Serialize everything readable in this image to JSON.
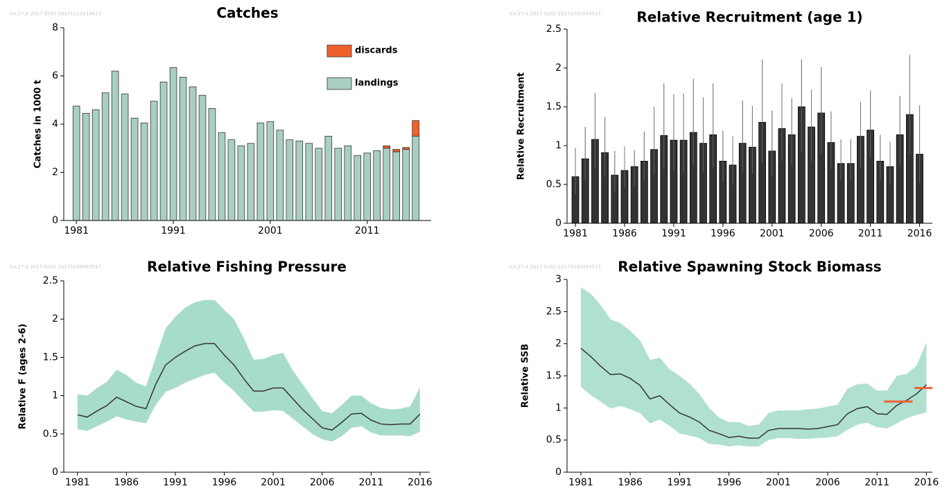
{
  "chart_data": [
    {
      "type": "bar",
      "stamp": "tur.27.4 2017 9260 20171113144813",
      "title": "Catches",
      "y_label": "Catches in 1000 t",
      "x": [
        1981,
        1982,
        1983,
        1984,
        1985,
        1986,
        1987,
        1988,
        1989,
        1990,
        1991,
        1992,
        1993,
        1994,
        1995,
        1996,
        1997,
        1998,
        1999,
        2000,
        2001,
        2002,
        2003,
        2004,
        2005,
        2006,
        2007,
        2008,
        2009,
        2010,
        2011,
        2012,
        2013,
        2014,
        2015,
        2016
      ],
      "series": [
        {
          "name": "landings",
          "color": "#a9cfc1",
          "values": [
            4.75,
            4.45,
            4.6,
            5.3,
            6.2,
            5.25,
            4.25,
            4.05,
            4.95,
            5.75,
            6.35,
            5.95,
            5.55,
            5.2,
            4.65,
            3.65,
            3.35,
            3.1,
            3.2,
            4.05,
            4.1,
            3.75,
            3.35,
            3.3,
            3.2,
            3.0,
            3.5,
            3.0,
            3.1,
            2.7,
            2.8,
            2.9,
            3.0,
            2.85,
            2.95,
            3.5
          ]
        },
        {
          "name": "discards",
          "color": "#f0602b",
          "values": [
            0,
            0,
            0,
            0,
            0,
            0,
            0,
            0,
            0,
            0,
            0,
            0,
            0,
            0,
            0,
            0,
            0,
            0,
            0,
            0,
            0,
            0,
            0,
            0,
            0,
            0,
            0,
            0,
            0,
            0,
            0,
            0,
            0.1,
            0.1,
            0.08,
            0.65
          ]
        }
      ],
      "legend": "top-right",
      "xlim": [
        1979.7,
        2017.6
      ],
      "xticks": [
        1981,
        1991,
        2001,
        2011
      ],
      "ylim": [
        0,
        8
      ],
      "yticks": [
        0,
        2,
        4,
        6,
        8
      ]
    },
    {
      "type": "bar",
      "stamp": "tur.27.4 2017 9242 20171030083517",
      "title": "Relative Recruitment (age 1)",
      "y_label": "Relative Recruitment",
      "x": [
        1981,
        1982,
        1983,
        1984,
        1985,
        1986,
        1987,
        1988,
        1989,
        1990,
        1991,
        1992,
        1993,
        1994,
        1995,
        1996,
        1997,
        1998,
        1999,
        2000,
        2001,
        2002,
        2003,
        2004,
        2005,
        2006,
        2007,
        2008,
        2009,
        2010,
        2011,
        2012,
        2013,
        2014,
        2015,
        2016
      ],
      "values": [
        0.6,
        0.83,
        1.08,
        0.91,
        0.62,
        0.68,
        0.73,
        0.8,
        0.95,
        1.13,
        1.07,
        1.07,
        1.17,
        1.03,
        1.14,
        0.8,
        0.75,
        1.03,
        0.98,
        1.3,
        0.93,
        1.22,
        1.14,
        1.5,
        1.24,
        1.42,
        1.04,
        0.77,
        0.77,
        1.12,
        1.2,
        0.8,
        0.73,
        1.14,
        1.4,
        0.89
      ],
      "upper": [
        0.97,
        1.24,
        1.68,
        1.37,
        0.93,
        0.99,
        0.94,
        1.18,
        1.5,
        1.8,
        1.66,
        1.67,
        1.86,
        1.62,
        1.8,
        1.19,
        1.12,
        1.58,
        1.51,
        2.11,
        1.45,
        1.8,
        1.61,
        2.11,
        1.72,
        2.01,
        1.44,
        1.08,
        1.08,
        1.56,
        1.71,
        1.14,
        1.05,
        1.64,
        2.17,
        1.52
      ],
      "lower": [
        0.37,
        0.55,
        0.7,
        0.6,
        0.41,
        0.46,
        0.48,
        0.55,
        0.63,
        0.7,
        0.68,
        0.66,
        0.74,
        0.66,
        0.72,
        0.53,
        0.5,
        0.67,
        0.64,
        0.78,
        0.6,
        0.8,
        0.75,
        0.93,
        0.8,
        0.9,
        0.7,
        0.55,
        0.55,
        0.72,
        0.85,
        0.55,
        0.5,
        0.76,
        0.9,
        0.52
      ],
      "color": "#333333",
      "error_color": "#777777",
      "xlim": [
        1980.15,
        2017.3
      ],
      "xticks": [
        1981,
        1986,
        1991,
        1996,
        2001,
        2006,
        2011,
        2016
      ],
      "ylim": [
        0,
        2.5
      ],
      "yticks": [
        0,
        0.5,
        1,
        1.5,
        2,
        2.5
      ]
    },
    {
      "type": "line",
      "stamp": "tur.27.4 2017 9242 20171030083517",
      "title": "Relative Fishing Pressure",
      "y_label": "Relative F (ages 2-6)",
      "x": [
        1981,
        1982,
        1983,
        1984,
        1985,
        1986,
        1987,
        1988,
        1989,
        1990,
        1991,
        1992,
        1993,
        1994,
        1995,
        1996,
        1997,
        1998,
        1999,
        2000,
        2001,
        2002,
        2003,
        2004,
        2005,
        2006,
        2007,
        2008,
        2009,
        2010,
        2011,
        2012,
        2013,
        2014,
        2015,
        2016
      ],
      "values": [
        0.75,
        0.72,
        0.8,
        0.87,
        0.98,
        0.92,
        0.86,
        0.83,
        1.15,
        1.4,
        1.5,
        1.58,
        1.65,
        1.68,
        1.68,
        1.53,
        1.4,
        1.22,
        1.06,
        1.06,
        1.1,
        1.1,
        0.96,
        0.82,
        0.7,
        0.58,
        0.55,
        0.65,
        0.76,
        0.77,
        0.68,
        0.63,
        0.62,
        0.63,
        0.63,
        0.76
      ],
      "upper": [
        1.02,
        1.0,
        1.1,
        1.18,
        1.34,
        1.27,
        1.17,
        1.12,
        1.5,
        1.88,
        2.03,
        2.15,
        2.22,
        2.25,
        2.25,
        2.12,
        2.0,
        1.75,
        1.47,
        1.48,
        1.53,
        1.56,
        1.33,
        1.15,
        0.97,
        0.8,
        0.77,
        0.88,
        1.0,
        1.0,
        0.9,
        0.84,
        0.82,
        0.83,
        0.86,
        1.11
      ],
      "lower": [
        0.56,
        0.54,
        0.6,
        0.66,
        0.73,
        0.69,
        0.66,
        0.64,
        0.88,
        1.05,
        1.1,
        1.17,
        1.22,
        1.27,
        1.3,
        1.17,
        1.06,
        0.92,
        0.79,
        0.79,
        0.81,
        0.8,
        0.7,
        0.6,
        0.5,
        0.43,
        0.4,
        0.47,
        0.58,
        0.6,
        0.52,
        0.48,
        0.48,
        0.48,
        0.47,
        0.53
      ],
      "color": "#333333",
      "band_color": "#a8dcca",
      "xlim": [
        1979.6,
        2017.0
      ],
      "xticks": [
        1981,
        1986,
        1991,
        1996,
        2001,
        2006,
        2011,
        2016
      ],
      "ylim": [
        0,
        2.5
      ],
      "yticks": [
        0,
        0.5,
        1,
        1.5,
        2,
        2.5
      ]
    },
    {
      "type": "line",
      "stamp": "tur.27.4 2017 9242 20171030083517",
      "title": "Relative Spawning Stock Biomass",
      "y_label": "Relative SSB",
      "x": [
        1981,
        1982,
        1983,
        1984,
        1985,
        1986,
        1987,
        1988,
        1989,
        1990,
        1991,
        1992,
        1993,
        1994,
        1995,
        1996,
        1997,
        1998,
        1999,
        2000,
        2001,
        2002,
        2003,
        2004,
        2005,
        2006,
        2007,
        2008,
        2009,
        2010,
        2011,
        2012,
        2013,
        2014,
        2015,
        2016
      ],
      "values": [
        1.93,
        1.8,
        1.65,
        1.52,
        1.53,
        1.46,
        1.35,
        1.14,
        1.19,
        1.05,
        0.92,
        0.86,
        0.78,
        0.65,
        0.6,
        0.54,
        0.56,
        0.53,
        0.53,
        0.65,
        0.68,
        0.68,
        0.68,
        0.67,
        0.68,
        0.71,
        0.74,
        0.91,
        0.99,
        1.02,
        0.91,
        0.9,
        1.04,
        1.12,
        1.22,
        1.36
      ],
      "upper": [
        2.88,
        2.78,
        2.6,
        2.38,
        2.32,
        2.2,
        2.05,
        1.75,
        1.78,
        1.6,
        1.5,
        1.38,
        1.22,
        1.0,
        0.85,
        0.78,
        0.78,
        0.72,
        0.74,
        0.92,
        0.96,
        0.96,
        0.96,
        0.98,
        0.99,
        1.02,
        1.05,
        1.3,
        1.37,
        1.38,
        1.27,
        1.27,
        1.5,
        1.53,
        1.66,
        2.02
      ],
      "lower": [
        1.33,
        1.2,
        1.1,
        0.99,
        1.03,
        0.98,
        0.92,
        0.76,
        0.82,
        0.72,
        0.6,
        0.57,
        0.53,
        0.44,
        0.43,
        0.4,
        0.42,
        0.4,
        0.4,
        0.5,
        0.53,
        0.53,
        0.52,
        0.52,
        0.53,
        0.54,
        0.56,
        0.66,
        0.74,
        0.77,
        0.7,
        0.68,
        0.76,
        0.84,
        0.89,
        0.93
      ],
      "color": "#333333",
      "band_color": "#b0e0d0",
      "reference_lines": [
        {
          "x": [
            2011.7,
            2014.6
          ],
          "y": 1.1
        },
        {
          "x": [
            2014.8,
            2016.6
          ],
          "y": 1.31
        }
      ],
      "reference_color": "#f06030",
      "xlim": [
        1979.6,
        2016.6
      ],
      "xticks": [
        1981,
        1986,
        1991,
        1996,
        2001,
        2006,
        2011,
        2016
      ],
      "ylim": [
        0,
        3
      ],
      "yticks": [
        0,
        0.5,
        1,
        1.5,
        2,
        2.5,
        3
      ]
    }
  ]
}
